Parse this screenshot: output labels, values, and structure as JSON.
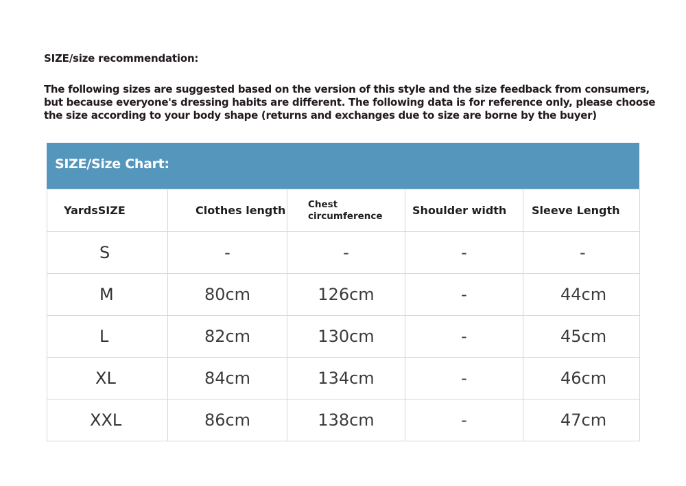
{
  "title": "SIZE/size recommendation:",
  "intro": "The following sizes are suggested based on the version of this style and the size feedback from consumers, but because everyone's dressing habits are different. The following data is for reference only, please choose the size according to your body shape (returns and exchanges due to size are borne by the buyer)",
  "chart": {
    "heading": "SIZE/Size Chart:",
    "header_color": "#5596bd",
    "columns": [
      "YardsSIZE",
      "Clothes length",
      "Chest circumference",
      "Shoulder width",
      "Sleeve Length"
    ],
    "rows": [
      [
        "S",
        "-",
        "-",
        "-",
        "-"
      ],
      [
        "M",
        "80cm",
        "126cm",
        "-",
        "44cm"
      ],
      [
        "L",
        "82cm",
        "130cm",
        "-",
        "45cm"
      ],
      [
        "XL",
        "84cm",
        "134cm",
        "-",
        "46cm"
      ],
      [
        "XXL",
        "86cm",
        "138cm",
        "-",
        "47cm"
      ]
    ]
  }
}
